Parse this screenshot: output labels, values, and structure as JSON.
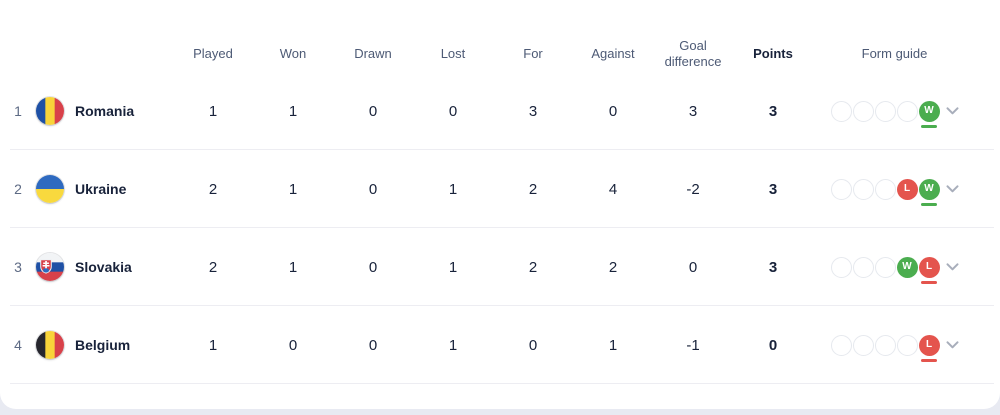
{
  "table": {
    "columns": [
      {
        "key": "played",
        "label": "Played"
      },
      {
        "key": "won",
        "label": "Won"
      },
      {
        "key": "drawn",
        "label": "Drawn"
      },
      {
        "key": "lost",
        "label": "Lost"
      },
      {
        "key": "for",
        "label": "For"
      },
      {
        "key": "against",
        "label": "Against"
      },
      {
        "key": "goal_difference",
        "label": "Goal difference"
      },
      {
        "key": "points",
        "label": "Points",
        "bold": true
      },
      {
        "key": "form_guide",
        "label": "Form guide"
      }
    ],
    "rows": [
      {
        "position": "1",
        "team": "Romania",
        "flag": "romania",
        "stats": {
          "played": "1",
          "won": "1",
          "drawn": "0",
          "lost": "0",
          "for": "3",
          "against": "0",
          "goal_difference": "3",
          "points": "3"
        },
        "form": [
          "",
          "",
          "",
          "",
          "W"
        ]
      },
      {
        "position": "2",
        "team": "Ukraine",
        "flag": "ukraine",
        "stats": {
          "played": "2",
          "won": "1",
          "drawn": "0",
          "lost": "1",
          "for": "2",
          "against": "4",
          "goal_difference": "-2",
          "points": "3"
        },
        "form": [
          "",
          "",
          "",
          "L",
          "W"
        ]
      },
      {
        "position": "3",
        "team": "Slovakia",
        "flag": "slovakia",
        "stats": {
          "played": "2",
          "won": "1",
          "drawn": "0",
          "lost": "1",
          "for": "2",
          "against": "2",
          "goal_difference": "0",
          "points": "3"
        },
        "form": [
          "",
          "",
          "",
          "W",
          "L"
        ]
      },
      {
        "position": "4",
        "team": "Belgium",
        "flag": "belgium",
        "stats": {
          "played": "1",
          "won": "0",
          "drawn": "0",
          "lost": "1",
          "for": "0",
          "against": "1",
          "goal_difference": "-1",
          "points": "0"
        },
        "form": [
          "",
          "",
          "",
          "",
          "L"
        ]
      }
    ]
  },
  "flags": {
    "romania": {
      "type": "vertical",
      "colors": [
        "#1e50a5",
        "#f8d43a",
        "#d8414a"
      ]
    },
    "ukraine": {
      "type": "horizontal",
      "colors": [
        "#2e6ac0",
        "#f8d93e"
      ]
    },
    "slovakia": {
      "type": "horizontal",
      "colors": [
        "#f2f4f6",
        "#1e50a5",
        "#d8414a"
      ],
      "emblem": true
    },
    "belgium": {
      "type": "vertical",
      "colors": [
        "#26262e",
        "#f8d43a",
        "#d8414a"
      ]
    }
  },
  "icons": {
    "chevron": "chevron-down-icon",
    "win_letter": "W",
    "loss_letter": "L"
  },
  "colors": {
    "win": "#4bad4f",
    "loss": "#e4544d",
    "text_dark": "#18223a",
    "header_text": "#4d5a75",
    "separator": "#ededf2",
    "page_bg": "#e8eaf2",
    "chevron": "#a8aebb"
  }
}
